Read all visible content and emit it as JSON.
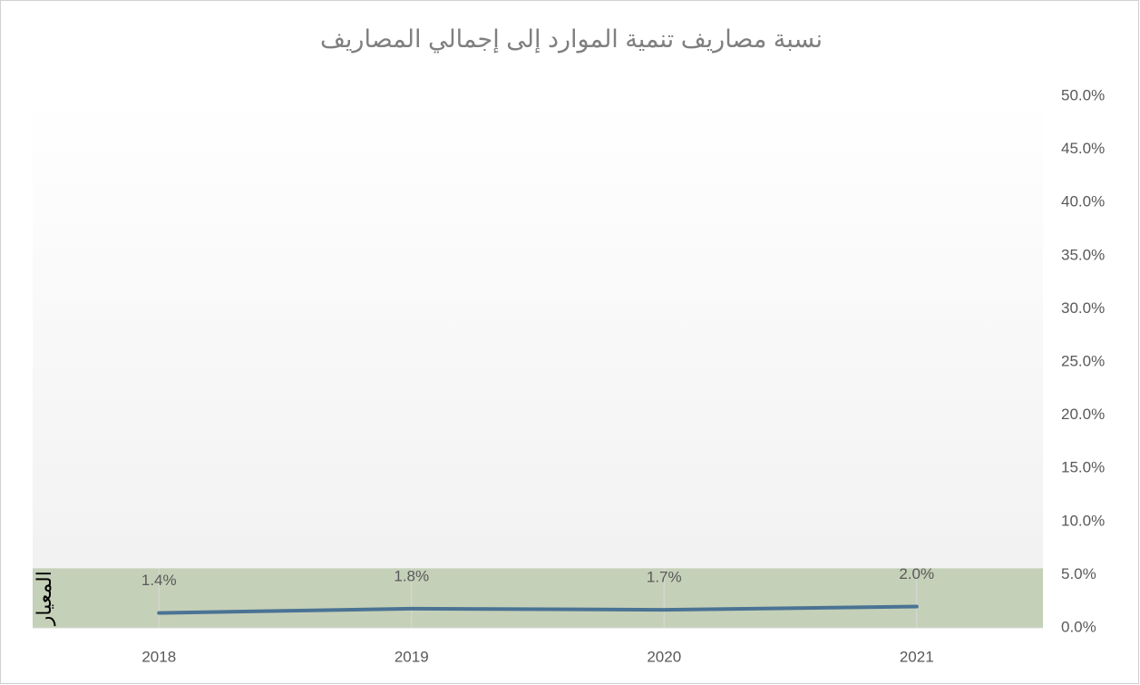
{
  "chart_data": {
    "type": "line",
    "title": "نسبة مصاريف تنمية الموارد إلى إجمالي المصاريف",
    "categories": [
      "2018",
      "2019",
      "2020",
      "2021"
    ],
    "values": [
      1.4,
      1.8,
      1.7,
      2.0
    ],
    "value_labels": [
      "1.4%",
      "1.8%",
      "1.7%",
      "2.0%"
    ],
    "color": "#4a7394",
    "ylim": [
      0,
      50
    ],
    "yticks": [
      {
        "value": 0,
        "label": "0.0%"
      },
      {
        "value": 5,
        "label": "5.0%"
      },
      {
        "value": 10,
        "label": "10.0%"
      },
      {
        "value": 15,
        "label": "15.0%"
      },
      {
        "value": 20,
        "label": "20.0%"
      },
      {
        "value": 25,
        "label": "25.0%"
      },
      {
        "value": 30,
        "label": "30.0%"
      },
      {
        "value": 35,
        "label": "35.0%"
      },
      {
        "value": 40,
        "label": "40.0%"
      },
      {
        "value": 45,
        "label": "45.0%"
      },
      {
        "value": 50,
        "label": "50.0%"
      }
    ],
    "band": {
      "label": "المعيار",
      "value": 5.6,
      "color": "#c5d0b8"
    }
  }
}
